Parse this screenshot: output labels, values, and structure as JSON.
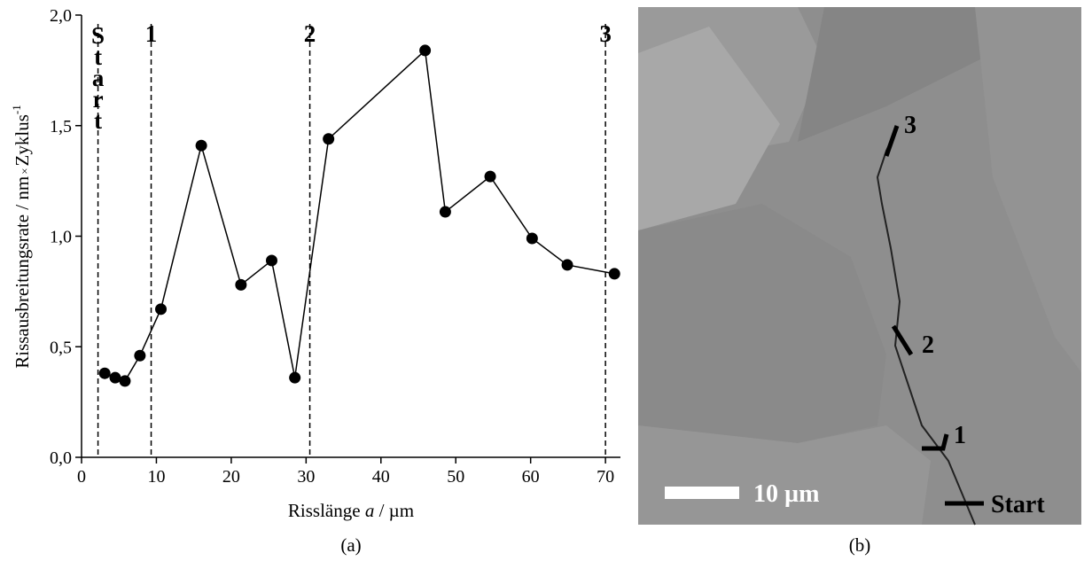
{
  "chart_data": {
    "type": "line",
    "panel_label": "(a)",
    "xlabel_parts": [
      "Risslänge ",
      "a",
      " / µm"
    ],
    "ylabel_parts": [
      "Rissausbreitungsrate / nm",
      "×",
      "Zyklus",
      "-1"
    ],
    "x": [
      3.1,
      4.5,
      5.8,
      7.8,
      10.6,
      16.0,
      21.3,
      25.4,
      28.5,
      33.0,
      45.9,
      48.6,
      54.6,
      60.2,
      64.9,
      71.2
    ],
    "series": [
      {
        "color": "#000000",
        "values": [
          0.38,
          0.36,
          0.345,
          0.46,
          0.67,
          1.41,
          0.78,
          0.89,
          0.36,
          1.44,
          1.84,
          1.11,
          1.27,
          0.99,
          0.87,
          0.83
        ]
      }
    ],
    "xlim": [
      0,
      72
    ],
    "ylim": [
      0,
      2
    ],
    "xticks": [
      0,
      10,
      20,
      30,
      40,
      50,
      60,
      70
    ],
    "yticks": [
      {
        "value": 0,
        "label": "0,0"
      },
      {
        "value": 0.5,
        "label": "0,5"
      },
      {
        "value": 1,
        "label": "1,0"
      },
      {
        "value": 1.5,
        "label": "1,5"
      },
      {
        "value": 2,
        "label": "2,0"
      }
    ],
    "markers": [
      {
        "x": 2.2,
        "label": "Start"
      },
      {
        "x": 9.3,
        "label": "1"
      },
      {
        "x": 30.5,
        "label": "2"
      },
      {
        "x": 70.0,
        "label": "3"
      }
    ]
  },
  "micrograph": {
    "panel_label": "(b)",
    "scale_bar": "10 µm",
    "labels": [
      "3",
      "2",
      "1",
      "Start"
    ]
  }
}
